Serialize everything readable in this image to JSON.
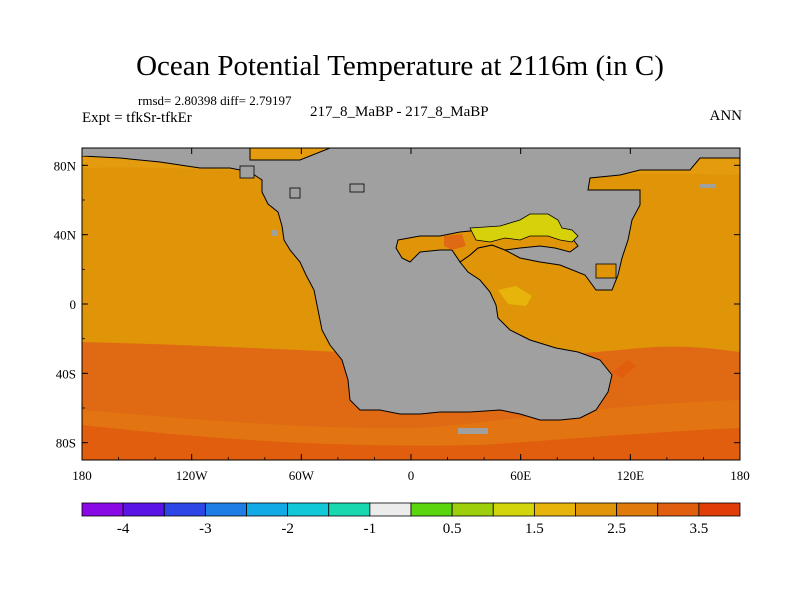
{
  "figure": {
    "title": "Ocean Potential Temperature at 2116m (in C)",
    "stats": "rmsd= 2.80398 diff= 2.79197",
    "experiment": "Expt = tfkSr-tfkEr",
    "subtitle": "217_8_MaBP - 217_8_MaBP",
    "season": "ANN"
  },
  "map": {
    "projection": "cylindrical-equidistant",
    "lon_range": [
      -180,
      180
    ],
    "lat_range": [
      -90,
      90
    ],
    "lon_ticks": [
      "180",
      "120W",
      "60W",
      "0",
      "60E",
      "120E",
      "180"
    ],
    "lat_ticks": [
      "80N",
      "40N",
      "0",
      "40S",
      "80S"
    ],
    "land_color": "#a0a0a0",
    "ocean_fill_bands": [
      {
        "lat_range": [
          15,
          90
        ],
        "color": "#e09509"
      },
      {
        "lat_range": [
          -30,
          15
        ],
        "color": "#e09509"
      },
      {
        "lat_range": [
          -70,
          -30
        ],
        "color": "#e06a13"
      },
      {
        "lat_range": [
          -90,
          -70
        ],
        "color": "#e06a13"
      }
    ],
    "regional_anomaly_color": "#d7d10c"
  },
  "colorbar": {
    "tick_labels": [
      "-4",
      "-3",
      "-2",
      "-1",
      "0.5",
      "1.5",
      "2.5",
      "3.5"
    ],
    "colors": [
      "#8a0ae6",
      "#5a14e6",
      "#2e46e6",
      "#1e7ee6",
      "#12aae6",
      "#10c8d8",
      "#18d8b0",
      "#ececec",
      "#5ad50e",
      "#9ecf0c",
      "#d2d40c",
      "#e6b40a",
      "#e09509",
      "#e07a0a",
      "#e05e0e",
      "#e03e08"
    ]
  }
}
